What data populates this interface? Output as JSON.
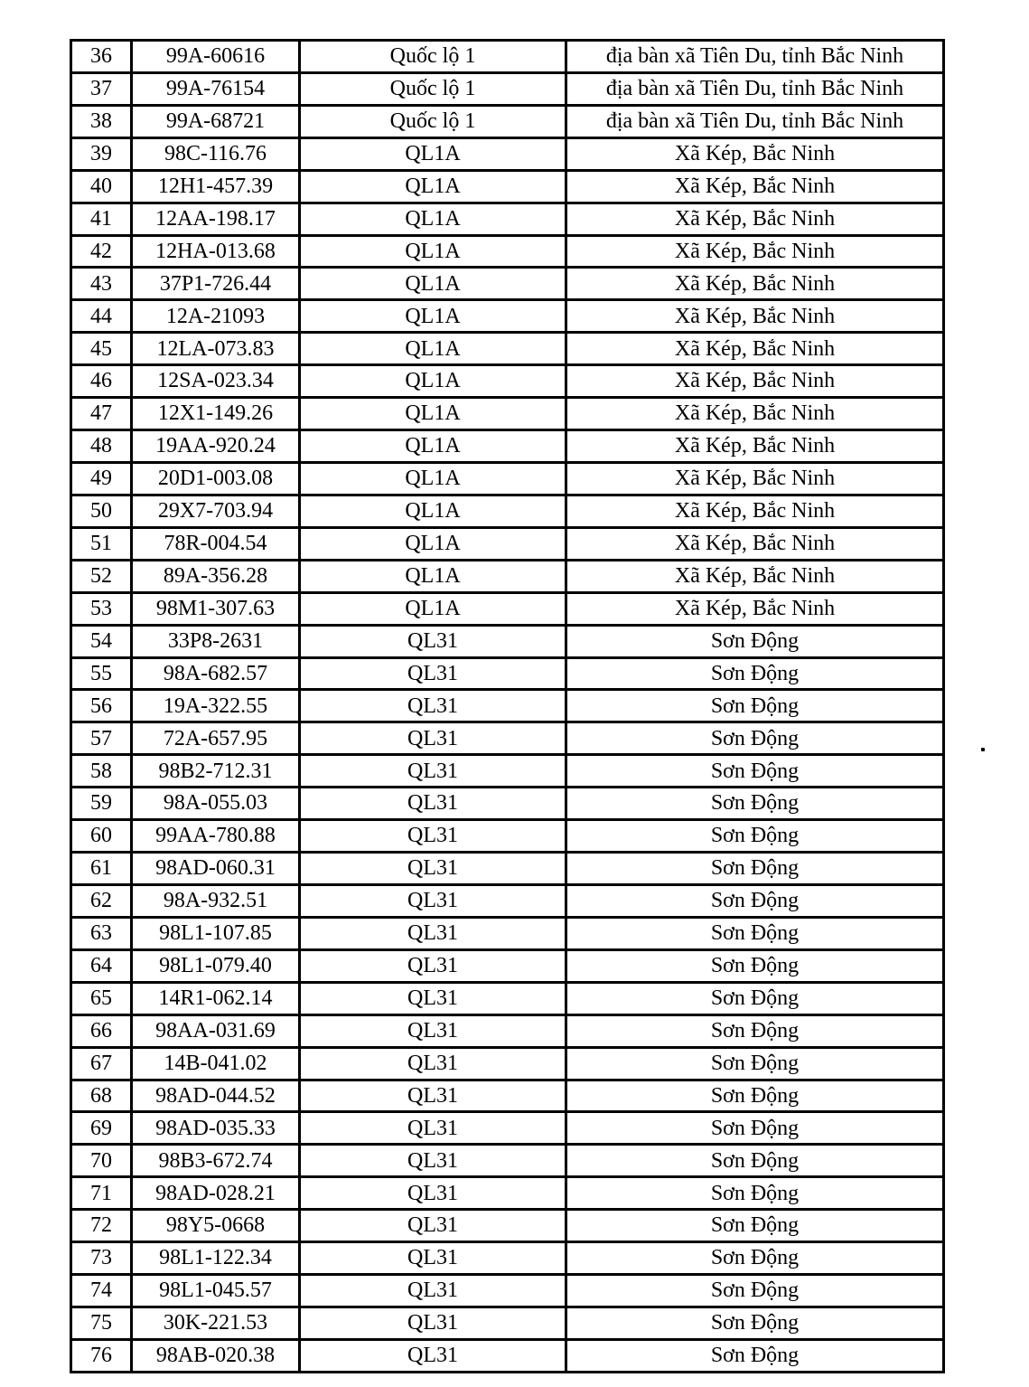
{
  "page": {
    "background_color": "#ffffff",
    "text_color": "#000000"
  },
  "table": {
    "column_keys": [
      "no",
      "plate",
      "road",
      "location"
    ],
    "rows": [
      {
        "no": "36",
        "plate": "99A-60616",
        "road": "Quốc lộ 1",
        "location": "địa bàn xã Tiên Du, tỉnh Bắc Ninh"
      },
      {
        "no": "37",
        "plate": "99A-76154",
        "road": "Quốc lộ 1",
        "location": "địa bàn xã Tiên Du, tỉnh Bắc Ninh"
      },
      {
        "no": "38",
        "plate": "99A-68721",
        "road": "Quốc lộ 1",
        "location": "địa bàn xã Tiên Du, tỉnh Bắc Ninh"
      },
      {
        "no": "39",
        "plate": "98C-116.76",
        "road": "QL1A",
        "location": "Xã Kép, Bắc Ninh"
      },
      {
        "no": "40",
        "plate": "12H1-457.39",
        "road": "QL1A",
        "location": "Xã Kép, Bắc Ninh"
      },
      {
        "no": "41",
        "plate": "12AA-198.17",
        "road": "QL1A",
        "location": "Xã Kép, Bắc Ninh"
      },
      {
        "no": "42",
        "plate": "12HA-013.68",
        "road": "QL1A",
        "location": "Xã Kép, Bắc Ninh"
      },
      {
        "no": "43",
        "plate": "37P1-726.44",
        "road": "QL1A",
        "location": "Xã Kép, Bắc Ninh"
      },
      {
        "no": "44",
        "plate": "12A-21093",
        "road": "QL1A",
        "location": "Xã Kép, Bắc Ninh"
      },
      {
        "no": "45",
        "plate": "12LA-073.83",
        "road": "QL1A",
        "location": "Xã Kép, Bắc Ninh"
      },
      {
        "no": "46",
        "plate": "12SA-023.34",
        "road": "QL1A",
        "location": "Xã Kép, Bắc Ninh"
      },
      {
        "no": "47",
        "plate": "12X1-149.26",
        "road": "QL1A",
        "location": "Xã Kép, Bắc Ninh"
      },
      {
        "no": "48",
        "plate": "19AA-920.24",
        "road": "QL1A",
        "location": "Xã Kép, Bắc Ninh"
      },
      {
        "no": "49",
        "plate": "20D1-003.08",
        "road": "QL1A",
        "location": "Xã Kép, Bắc Ninh"
      },
      {
        "no": "50",
        "plate": "29X7-703.94",
        "road": "QL1A",
        "location": "Xã Kép, Bắc Ninh"
      },
      {
        "no": "51",
        "plate": "78R-004.54",
        "road": "QL1A",
        "location": "Xã Kép, Bắc Ninh"
      },
      {
        "no": "52",
        "plate": "89A-356.28",
        "road": "QL1A",
        "location": "Xã Kép, Bắc Ninh"
      },
      {
        "no": "53",
        "plate": "98M1-307.63",
        "road": "QL1A",
        "location": "Xã Kép, Bắc Ninh"
      },
      {
        "no": "54",
        "plate": "33P8-2631",
        "road": "QL31",
        "location": "Sơn Động"
      },
      {
        "no": "55",
        "plate": "98A-682.57",
        "road": "QL31",
        "location": "Sơn Động"
      },
      {
        "no": "56",
        "plate": "19A-322.55",
        "road": "QL31",
        "location": "Sơn Động"
      },
      {
        "no": "57",
        "plate": "72A-657.95",
        "road": "QL31",
        "location": "Sơn Động"
      },
      {
        "no": "58",
        "plate": "98B2-712.31",
        "road": "QL31",
        "location": "Sơn Động"
      },
      {
        "no": "59",
        "plate": "98A-055.03",
        "road": "QL31",
        "location": "Sơn Động"
      },
      {
        "no": "60",
        "plate": "99AA-780.88",
        "road": "QL31",
        "location": "Sơn Động"
      },
      {
        "no": "61",
        "plate": "98AD-060.31",
        "road": "QL31",
        "location": "Sơn Động"
      },
      {
        "no": "62",
        "plate": "98A-932.51",
        "road": "QL31",
        "location": "Sơn Động"
      },
      {
        "no": "63",
        "plate": "98L1-107.85",
        "road": "QL31",
        "location": "Sơn Động"
      },
      {
        "no": "64",
        "plate": "98L1-079.40",
        "road": "QL31",
        "location": "Sơn Động"
      },
      {
        "no": "65",
        "plate": "14R1-062.14",
        "road": "QL31",
        "location": "Sơn Động"
      },
      {
        "no": "66",
        "plate": "98AA-031.69",
        "road": "QL31",
        "location": "Sơn Động"
      },
      {
        "no": "67",
        "plate": "14B-041.02",
        "road": "QL31",
        "location": "Sơn Động"
      },
      {
        "no": "68",
        "plate": "98AD-044.52",
        "road": "QL31",
        "location": "Sơn Động"
      },
      {
        "no": "69",
        "plate": "98AD-035.33",
        "road": "QL31",
        "location": "Sơn Động"
      },
      {
        "no": "70",
        "plate": "98B3-672.74",
        "road": "QL31",
        "location": "Sơn Động"
      },
      {
        "no": "71",
        "plate": "98AD-028.21",
        "road": "QL31",
        "location": "Sơn Động"
      },
      {
        "no": "72",
        "plate": "98Y5-0668",
        "road": "QL31",
        "location": "Sơn Động"
      },
      {
        "no": "73",
        "plate": "98L1-122.34",
        "road": "QL31",
        "location": "Sơn Động"
      },
      {
        "no": "74",
        "plate": "98L1-045.57",
        "road": "QL31",
        "location": "Sơn Động"
      },
      {
        "no": "75",
        "plate": "30K-221.53",
        "road": "QL31",
        "location": "Sơn Động"
      },
      {
        "no": "76",
        "plate": "98AB-020.38",
        "road": "QL31",
        "location": "Sơn Động"
      }
    ]
  }
}
